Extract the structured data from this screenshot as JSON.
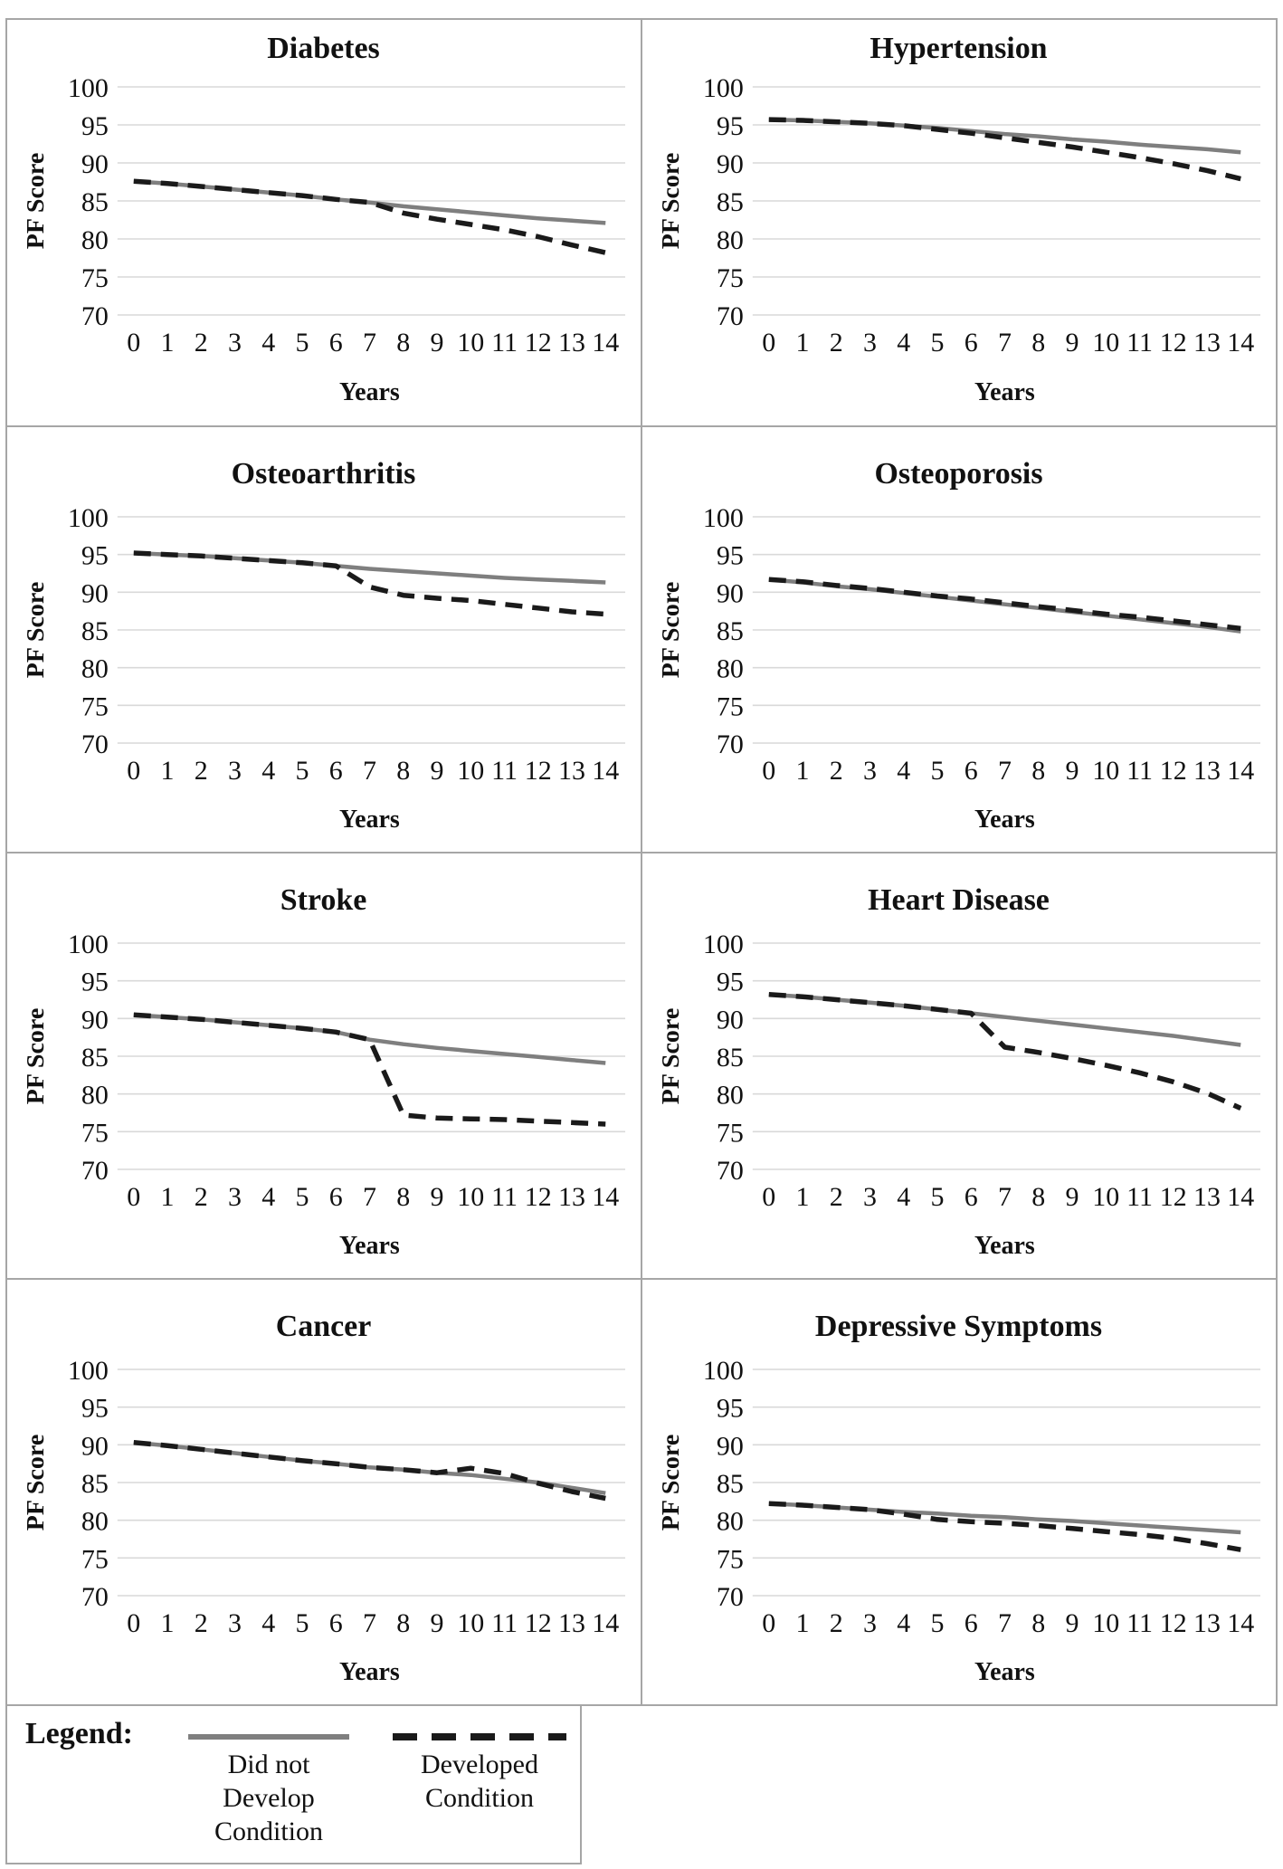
{
  "figure": {
    "y_axis_label": "PF Score",
    "x_axis_label": "Years",
    "y_ticks": [
      100,
      95,
      90,
      85,
      80,
      75,
      70
    ],
    "x_ticks": [
      0,
      1,
      2,
      3,
      4,
      5,
      6,
      7,
      8,
      9,
      10,
      11,
      12,
      13,
      14
    ],
    "colors": {
      "did_not_develop_line": "#7f7f7f",
      "developed_line": "#1a1a1a",
      "gridline": "#d9d9d9",
      "panel_border": "#a6a6a6",
      "text": "#111111"
    }
  },
  "legend": {
    "heading": "Legend:",
    "items": [
      {
        "label": "Did not\nDevelop\nCondition",
        "style": "solid-gray"
      },
      {
        "label": "Developed\nCondition",
        "style": "dashed-black"
      }
    ]
  },
  "chart_data": [
    {
      "type": "line",
      "title": "Diabetes",
      "xlabel": "Years",
      "ylabel": "PF Score",
      "ylim": [
        70,
        100
      ],
      "yticks": [
        100,
        95,
        90,
        85,
        80,
        75,
        70
      ],
      "grid": true,
      "x": [
        0,
        1,
        2,
        3,
        4,
        5,
        6,
        7,
        8,
        9,
        10,
        11,
        12,
        13,
        14
      ],
      "series": [
        {
          "name": "Did not Develop Condition",
          "line": "solid",
          "values": [
            87.6,
            87.3,
            86.9,
            86.5,
            86.1,
            85.7,
            85.2,
            84.8,
            84.3,
            83.9,
            83.5,
            83.1,
            82.7,
            82.4,
            82.1
          ]
        },
        {
          "name": "Developed Condition",
          "line": "dashed",
          "values": [
            87.6,
            87.3,
            86.9,
            86.5,
            86.1,
            85.7,
            85.2,
            84.8,
            83.4,
            82.6,
            81.9,
            81.2,
            80.3,
            79.2,
            78.2
          ]
        }
      ]
    },
    {
      "type": "line",
      "title": "Hypertension",
      "xlabel": "Years",
      "ylabel": "PF Score",
      "ylim": [
        70,
        100
      ],
      "yticks": [
        100,
        95,
        90,
        85,
        80,
        75,
        70
      ],
      "grid": true,
      "x": [
        0,
        1,
        2,
        3,
        4,
        5,
        6,
        7,
        8,
        9,
        10,
        11,
        12,
        13,
        14
      ],
      "series": [
        {
          "name": "Did not Develop Condition",
          "line": "solid",
          "values": [
            95.7,
            95.6,
            95.4,
            95.2,
            94.9,
            94.6,
            94.2,
            93.8,
            93.5,
            93.1,
            92.8,
            92.4,
            92.1,
            91.8,
            91.4
          ]
        },
        {
          "name": "Developed Condition",
          "line": "dashed",
          "values": [
            95.7,
            95.6,
            95.4,
            95.2,
            94.9,
            94.4,
            93.9,
            93.3,
            92.7,
            92.1,
            91.4,
            90.7,
            89.9,
            89.0,
            87.9
          ]
        }
      ]
    },
    {
      "type": "line",
      "title": "Osteoarthritis",
      "xlabel": "Years",
      "ylabel": "PF Score",
      "ylim": [
        70,
        100
      ],
      "yticks": [
        100,
        95,
        90,
        85,
        80,
        75,
        70
      ],
      "grid": true,
      "x": [
        0,
        1,
        2,
        3,
        4,
        5,
        6,
        7,
        8,
        9,
        10,
        11,
        12,
        13,
        14
      ],
      "series": [
        {
          "name": "Did not Develop Condition",
          "line": "solid",
          "values": [
            95.2,
            95.0,
            94.8,
            94.5,
            94.2,
            93.9,
            93.5,
            93.1,
            92.8,
            92.5,
            92.2,
            91.9,
            91.7,
            91.5,
            91.3
          ]
        },
        {
          "name": "Developed Condition",
          "line": "dashed",
          "values": [
            95.2,
            95.0,
            94.8,
            94.5,
            94.2,
            93.9,
            93.5,
            90.7,
            89.6,
            89.2,
            88.9,
            88.4,
            87.9,
            87.4,
            87.1
          ]
        }
      ]
    },
    {
      "type": "line",
      "title": "Osteoporosis",
      "xlabel": "Years",
      "ylabel": "PF Score",
      "ylim": [
        70,
        100
      ],
      "yticks": [
        100,
        95,
        90,
        85,
        80,
        75,
        70
      ],
      "grid": true,
      "x": [
        0,
        1,
        2,
        3,
        4,
        5,
        6,
        7,
        8,
        9,
        10,
        11,
        12,
        13,
        14
      ],
      "series": [
        {
          "name": "Did not Develop Condition",
          "line": "solid",
          "values": [
            91.7,
            91.3,
            90.8,
            90.4,
            89.9,
            89.4,
            88.9,
            88.4,
            87.9,
            87.4,
            86.9,
            86.4,
            85.9,
            85.4,
            84.8
          ]
        },
        {
          "name": "Developed Condition",
          "line": "dashed",
          "values": [
            91.7,
            91.4,
            90.9,
            90.5,
            90.0,
            89.5,
            89.1,
            88.6,
            88.1,
            87.6,
            87.1,
            86.7,
            86.2,
            85.7,
            85.2
          ]
        }
      ]
    },
    {
      "type": "line",
      "title": "Stroke",
      "xlabel": "Years",
      "ylabel": "PF Score",
      "ylim": [
        70,
        100
      ],
      "yticks": [
        100,
        95,
        90,
        85,
        80,
        75,
        70
      ],
      "grid": true,
      "x": [
        0,
        1,
        2,
        3,
        4,
        5,
        6,
        7,
        8,
        9,
        10,
        11,
        12,
        13,
        14
      ],
      "series": [
        {
          "name": "Did not Develop Condition",
          "line": "solid",
          "values": [
            90.5,
            90.2,
            89.9,
            89.5,
            89.1,
            88.7,
            88.2,
            87.2,
            86.6,
            86.1,
            85.7,
            85.3,
            84.9,
            84.5,
            84.1
          ]
        },
        {
          "name": "Developed Condition",
          "line": "dashed",
          "values": [
            90.5,
            90.2,
            89.9,
            89.5,
            89.1,
            88.7,
            88.2,
            87.2,
            77.2,
            76.8,
            76.7,
            76.6,
            76.4,
            76.2,
            76.0
          ]
        }
      ]
    },
    {
      "type": "line",
      "title": "Heart Disease",
      "xlabel": "Years",
      "ylabel": "PF Score",
      "ylim": [
        70,
        100
      ],
      "yticks": [
        100,
        95,
        90,
        85,
        80,
        75,
        70
      ],
      "grid": true,
      "x": [
        0,
        1,
        2,
        3,
        4,
        5,
        6,
        7,
        8,
        9,
        10,
        11,
        12,
        13,
        14
      ],
      "series": [
        {
          "name": "Did not Develop Condition",
          "line": "solid",
          "values": [
            93.2,
            92.9,
            92.5,
            92.1,
            91.7,
            91.2,
            90.7,
            90.2,
            89.7,
            89.2,
            88.7,
            88.2,
            87.7,
            87.1,
            86.5
          ]
        },
        {
          "name": "Developed Condition",
          "line": "dashed",
          "values": [
            93.2,
            92.9,
            92.5,
            92.1,
            91.7,
            91.2,
            90.7,
            86.2,
            85.5,
            84.7,
            83.8,
            82.8,
            81.6,
            80.1,
            78.1
          ]
        }
      ]
    },
    {
      "type": "line",
      "title": "Cancer",
      "xlabel": "Years",
      "ylabel": "PF Score",
      "ylim": [
        70,
        100
      ],
      "yticks": [
        100,
        95,
        90,
        85,
        80,
        75,
        70
      ],
      "grid": true,
      "x": [
        0,
        1,
        2,
        3,
        4,
        5,
        6,
        7,
        8,
        9,
        10,
        11,
        12,
        13,
        14
      ],
      "series": [
        {
          "name": "Did not Develop Condition",
          "line": "solid",
          "values": [
            90.3,
            89.9,
            89.4,
            88.9,
            88.4,
            87.9,
            87.5,
            87.0,
            86.7,
            86.3,
            86.0,
            85.5,
            85.0,
            84.3,
            83.6
          ]
        },
        {
          "name": "Developed Condition",
          "line": "dashed",
          "values": [
            90.3,
            89.9,
            89.4,
            88.9,
            88.4,
            87.9,
            87.5,
            87.0,
            86.7,
            86.3,
            86.9,
            86.2,
            84.9,
            83.8,
            82.9
          ]
        }
      ]
    },
    {
      "type": "line",
      "title": "Depressive Symptoms",
      "xlabel": "Years",
      "ylabel": "PF Score",
      "ylim": [
        70,
        100
      ],
      "yticks": [
        100,
        95,
        90,
        85,
        80,
        75,
        70
      ],
      "grid": true,
      "x": [
        0,
        1,
        2,
        3,
        4,
        5,
        6,
        7,
        8,
        9,
        10,
        11,
        12,
        13,
        14
      ],
      "series": [
        {
          "name": "Did not Develop Condition",
          "line": "solid",
          "values": [
            82.2,
            82.0,
            81.7,
            81.4,
            81.1,
            80.9,
            80.6,
            80.4,
            80.1,
            79.9,
            79.6,
            79.3,
            79.0,
            78.7,
            78.4
          ]
        },
        {
          "name": "Developed Condition",
          "line": "dashed",
          "values": [
            82.2,
            82.0,
            81.7,
            81.4,
            80.8,
            80.1,
            79.8,
            79.6,
            79.3,
            78.9,
            78.5,
            78.1,
            77.6,
            76.9,
            76.1
          ]
        }
      ]
    }
  ]
}
